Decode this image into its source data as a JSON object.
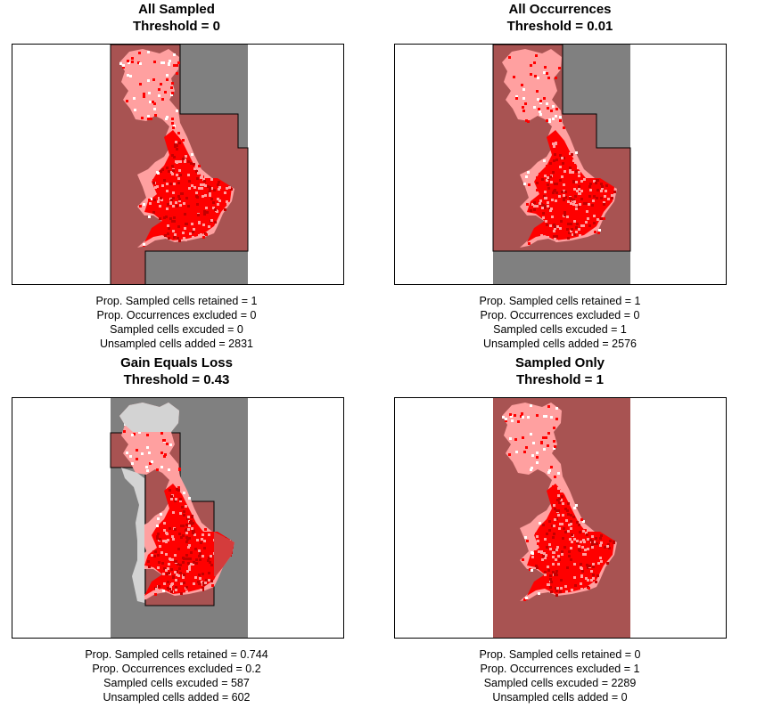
{
  "colors": {
    "background_cell": "#808080",
    "selected_region": "#a85352",
    "sampled_cell": "#ffa0a0",
    "occurrence_cell": "#ff0000",
    "excluded_sampled_cell": "#d3d3d3",
    "border": "#000000"
  },
  "panels": [
    {
      "title": "All Sampled",
      "threshold_label": "Threshold =  0",
      "threshold": 0,
      "stats": [
        "Prop. Sampled cells retained = 1",
        "Prop. Occurrences excluded = 0",
        "Sampled cells excuded = 0",
        "Unsampled cells added = 2831"
      ]
    },
    {
      "title": "All Occurrences",
      "threshold_label": "Threshold =  0.01",
      "threshold": 0.01,
      "stats": [
        "Prop. Sampled cells retained = 1",
        "Prop. Occurrences excluded = 0",
        "Sampled cells excuded = 1",
        "Unsampled cells added = 2576"
      ]
    },
    {
      "title": "Gain Equals Loss",
      "threshold_label": "Threshold =  0.43",
      "threshold": 0.43,
      "stats": [
        "Prop. Sampled cells retained = 0.744",
        "Prop. Occurrences excluded = 0.2",
        "Sampled cells excuded = 587",
        "Unsampled cells added = 602"
      ]
    },
    {
      "title": "Sampled Only",
      "threshold_label": "Threshold =  1",
      "threshold": 1,
      "stats": [
        "Prop. Sampled cells retained = 0",
        "Prop. Occurrences excluded = 1",
        "Sampled cells excuded = 2289",
        "Unsampled cells added = 0"
      ]
    }
  ]
}
